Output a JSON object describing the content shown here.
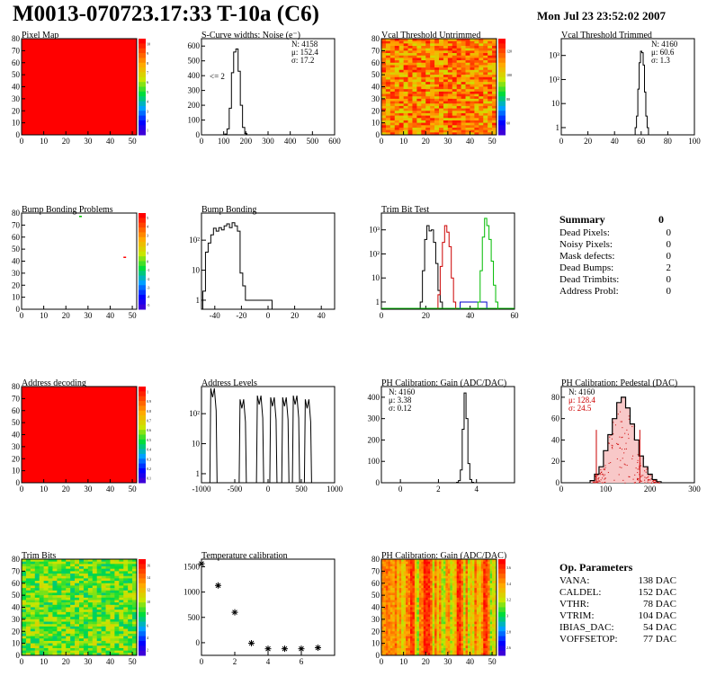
{
  "header": {
    "title": "M0013-070723.17:33 T-10a (C6)",
    "date": "Mon Jul 23 23:52:02 2007"
  },
  "summary": {
    "title": "Summary",
    "total": "0",
    "rows": [
      {
        "label": "Dead Pixels:",
        "value": "0"
      },
      {
        "label": "Noisy Pixels:",
        "value": "0"
      },
      {
        "label": "Mask defects:",
        "value": "0"
      },
      {
        "label": "Dead Bumps:",
        "value": "2"
      },
      {
        "label": "Dead Trimbits:",
        "value": "0"
      },
      {
        "label": "Address Probl:",
        "value": "0"
      }
    ]
  },
  "op_parameters": {
    "title": "Op. Parameters",
    "rows": [
      {
        "label": "VANA:",
        "value": "138 DAC"
      },
      {
        "label": "CALDEL:",
        "value": "152 DAC"
      },
      {
        "label": "VTHR:",
        "value": "78 DAC"
      },
      {
        "label": "VTRIM:",
        "value": "104 DAC"
      },
      {
        "label": "IBIAS_DAC:",
        "value": "54 DAC"
      },
      {
        "label": "VOFFSETOP:",
        "value": "77 DAC"
      }
    ]
  },
  "chart_data": [
    {
      "id": "pixel-map",
      "type": "heatmap",
      "title": "Pixel Map",
      "xlim": [
        0,
        52
      ],
      "ylim": [
        0,
        80
      ],
      "xticks": [
        "0",
        "10",
        "20",
        "30",
        "40",
        "50"
      ],
      "yticks": [
        "0",
        "10",
        "20",
        "30",
        "40",
        "50",
        "60",
        "70",
        "80"
      ],
      "fill": "uniform-red",
      "colorbar": {
        "ticks": [
          "1",
          "2",
          "3",
          "4",
          "5",
          "6",
          "7",
          "8",
          "9",
          "10"
        ]
      }
    },
    {
      "id": "scurve-noise",
      "type": "histogram",
      "title": "S-Curve widths: Noise (e⁻)",
      "xlim": [
        0,
        600
      ],
      "ylim": [
        0,
        650
      ],
      "log": false,
      "xticks": [
        "0",
        "100",
        "200",
        "300",
        "400",
        "500",
        "600"
      ],
      "yticks": [
        "0",
        "100",
        "200",
        "300",
        "400",
        "500",
        "600"
      ],
      "stats": [
        "N: 4158",
        "μ: 152.4",
        "σ: 17.2"
      ],
      "annotation": "<= 2",
      "x": [
        100,
        110,
        120,
        130,
        140,
        150,
        160,
        170,
        180,
        190,
        200,
        210
      ],
      "values": [
        0,
        5,
        40,
        180,
        420,
        560,
        580,
        430,
        200,
        50,
        8,
        0
      ]
    },
    {
      "id": "vcal-untrimmed",
      "type": "heatmap",
      "title": "Vcal Threshold Untrimmed",
      "xlim": [
        0,
        52
      ],
      "ylim": [
        0,
        80
      ],
      "xticks": [
        "0",
        "10",
        "20",
        "30",
        "40",
        "50"
      ],
      "yticks": [
        "0",
        "10",
        "20",
        "30",
        "40",
        "50",
        "60",
        "70",
        "80"
      ],
      "fill": "noisy-orange",
      "colorbar": {
        "ticks": [
          "60",
          "80",
          "100",
          "120"
        ]
      }
    },
    {
      "id": "vcal-trimmed",
      "type": "histogram",
      "title": "Vcal Threshold Trimmed",
      "xlim": [
        0,
        100
      ],
      "log": true,
      "xticks": [
        "0",
        "20",
        "40",
        "60",
        "80",
        "100"
      ],
      "yticks": [
        "1",
        "10",
        "10²",
        "10³"
      ],
      "stats": [
        "N: 4160",
        "μ: 60.6",
        "σ: 1.3"
      ],
      "x": [
        56,
        57,
        58,
        59,
        60,
        61,
        62,
        63,
        64,
        65
      ],
      "values": [
        1,
        3,
        40,
        500,
        1500,
        1300,
        400,
        30,
        3,
        1
      ]
    },
    {
      "id": "bump-bonding-problems",
      "type": "heatmap",
      "title": "Bump Bonding Problems",
      "xlim": [
        0,
        52
      ],
      "ylim": [
        0,
        80
      ],
      "xticks": [
        "0",
        "10",
        "20",
        "30",
        "40",
        "50"
      ],
      "yticks": [
        "0",
        "10",
        "20",
        "30",
        "40",
        "50",
        "60",
        "70",
        "80"
      ],
      "fill": "sparse",
      "points": [
        {
          "x": 26,
          "y": 77,
          "color": "#00c000"
        },
        {
          "x": 46,
          "y": 43,
          "color": "#ff0000"
        }
      ],
      "colorbar": {
        "ticks": [
          "-5",
          "-4",
          "-3",
          "-2",
          "-1",
          "0",
          "1",
          "2",
          "3",
          "4",
          "5"
        ]
      }
    },
    {
      "id": "bump-bonding",
      "type": "histogram",
      "title": "Bump Bonding",
      "xlim": [
        -50,
        50
      ],
      "log": true,
      "xticks": [
        "-40",
        "-20",
        "0",
        "20",
        "40"
      ],
      "yticks": [
        "1",
        "10",
        "10²"
      ],
      "x": [
        -48,
        -46,
        -44,
        -42,
        -40,
        -38,
        -36,
        -34,
        -32,
        -30,
        -28,
        -26,
        -24,
        -22,
        -20,
        -18,
        -16,
        -14,
        2
      ],
      "values": [
        2,
        40,
        80,
        150,
        250,
        200,
        260,
        220,
        300,
        350,
        260,
        380,
        300,
        200,
        8,
        3,
        1,
        1,
        1
      ]
    },
    {
      "id": "trim-bit-test",
      "type": "histogram",
      "title": "Trim Bit Test",
      "xlim": [
        0,
        60
      ],
      "log": true,
      "xticks": [
        "0",
        "20",
        "40",
        "60"
      ],
      "yticks": [
        "1",
        "10",
        "10²",
        "10³"
      ],
      "series": [
        {
          "color": "#000000",
          "x": [
            18,
            19,
            20,
            21,
            22,
            23,
            24,
            25,
            26,
            27
          ],
          "values": [
            1,
            20,
            400,
            1500,
            900,
            1000,
            300,
            40,
            3,
            1
          ]
        },
        {
          "color": "#cc0000",
          "x": [
            26,
            27,
            28,
            29,
            30,
            31,
            32,
            33
          ],
          "values": [
            2,
            30,
            300,
            1500,
            800,
            200,
            10,
            1
          ]
        },
        {
          "color": "#0000cc",
          "x": [
            38,
            43,
            45
          ],
          "values": [
            1,
            1,
            1
          ]
        },
        {
          "color": "#00bb00",
          "x": [
            44,
            45,
            46,
            47,
            48,
            49,
            50,
            51,
            52
          ],
          "values": [
            1,
            20,
            500,
            3000,
            1500,
            400,
            50,
            5,
            1
          ]
        }
      ]
    },
    {
      "id": "address-decoding",
      "type": "heatmap",
      "title": "Address decoding",
      "xlim": [
        0,
        52
      ],
      "ylim": [
        0,
        80
      ],
      "xticks": [
        "0",
        "10",
        "20",
        "30",
        "40",
        "50"
      ],
      "yticks": [
        "0",
        "10",
        "20",
        "30",
        "40",
        "50",
        "60",
        "70",
        "80"
      ],
      "fill": "uniform-red",
      "colorbar": {
        "ticks": [
          "0.1",
          "0.2",
          "0.3",
          "0.4",
          "0.5",
          "0.6",
          "0.7",
          "0.8",
          "0.9",
          "1"
        ]
      }
    },
    {
      "id": "address-levels",
      "type": "histogram",
      "title": "Address Levels",
      "xlim": [
        -1000,
        1000
      ],
      "log": true,
      "xticks": [
        "-1000",
        "-500",
        "0",
        "500",
        "1000"
      ],
      "yticks": [
        "1",
        "10",
        "10²"
      ],
      "peaks": [
        {
          "x": -820,
          "value": 700
        },
        {
          "x": -380,
          "value": 300
        },
        {
          "x": -120,
          "value": 400
        },
        {
          "x": 80,
          "value": 350
        },
        {
          "x": 260,
          "value": 350
        },
        {
          "x": 420,
          "value": 400
        },
        {
          "x": 600,
          "value": 300
        }
      ]
    },
    {
      "id": "ph-gain",
      "type": "histogram",
      "title": "PH Calibration: Gain (ADC/DAC)",
      "xlim": [
        -1,
        6
      ],
      "ylim": [
        0,
        450
      ],
      "log": false,
      "xticks": [
        "0",
        "2",
        "4"
      ],
      "yticks": [
        "0",
        "100",
        "200",
        "300",
        "400"
      ],
      "stats": [
        "N: 4160",
        "μ: 3.38",
        "σ: 0.12"
      ],
      "x": [
        3.0,
        3.1,
        3.2,
        3.3,
        3.4,
        3.5,
        3.6,
        3.7,
        3.8
      ],
      "values": [
        2,
        10,
        60,
        250,
        420,
        300,
        90,
        15,
        2
      ]
    },
    {
      "id": "ph-pedestal",
      "type": "histogram",
      "title": "PH Calibration: Pedestal (DAC)",
      "xlim": [
        0,
        300
      ],
      "ylim": [
        0,
        90
      ],
      "log": false,
      "xticks": [
        "0",
        "100",
        "200",
        "300"
      ],
      "yticks": [
        "0",
        "20",
        "40",
        "60",
        "80"
      ],
      "stats": [
        "N: 4160",
        "μ: 128.4",
        "σ: 24.5"
      ],
      "stats_colors": [
        "#000000",
        "#cc0000",
        "#cc0000"
      ],
      "x": [
        70,
        80,
        90,
        100,
        110,
        120,
        130,
        140,
        150,
        160,
        170,
        180,
        190,
        200,
        210,
        220
      ],
      "values": [
        2,
        8,
        15,
        30,
        45,
        60,
        75,
        80,
        70,
        55,
        40,
        25,
        15,
        8,
        3,
        1
      ],
      "markers": [
        79,
        177
      ]
    },
    {
      "id": "trim-bits",
      "type": "heatmap",
      "title": "Trim Bits",
      "xlim": [
        0,
        52
      ],
      "ylim": [
        0,
        80
      ],
      "xticks": [
        "0",
        "10",
        "20",
        "30",
        "40",
        "50"
      ],
      "yticks": [
        "0",
        "10",
        "20",
        "30",
        "40",
        "50",
        "60",
        "70",
        "80"
      ],
      "fill": "noisy-green",
      "colorbar": {
        "ticks": [
          "2",
          "4",
          "6",
          "8",
          "10",
          "12",
          "14",
          "16"
        ]
      }
    },
    {
      "id": "temperature-calibration",
      "type": "scatter",
      "title": "Temperature calibration",
      "xlim": [
        0,
        8
      ],
      "ylim": [
        -250,
        1650
      ],
      "xticks": [
        "0",
        "2",
        "4",
        "6"
      ],
      "yticks": [
        "0",
        "500",
        "1000",
        "1500"
      ],
      "x": [
        0,
        1,
        2,
        3,
        4,
        5,
        6,
        7
      ],
      "values": [
        1560,
        1130,
        600,
        -10,
        -120,
        -120,
        -120,
        -100
      ]
    },
    {
      "id": "ph-gain-map",
      "type": "heatmap",
      "title": "PH Calibration: Gain (ADC/DAC)",
      "xlim": [
        0,
        52
      ],
      "ylim": [
        0,
        80
      ],
      "xticks": [
        "0",
        "10",
        "20",
        "30",
        "40",
        "50"
      ],
      "yticks": [
        "0",
        "10",
        "20",
        "30",
        "40",
        "50",
        "60",
        "70",
        "80"
      ],
      "fill": "column-striped",
      "colorbar": {
        "ticks": [
          "2.6",
          "2.8",
          "3",
          "3.2",
          "3.4",
          "3.6"
        ]
      }
    }
  ]
}
